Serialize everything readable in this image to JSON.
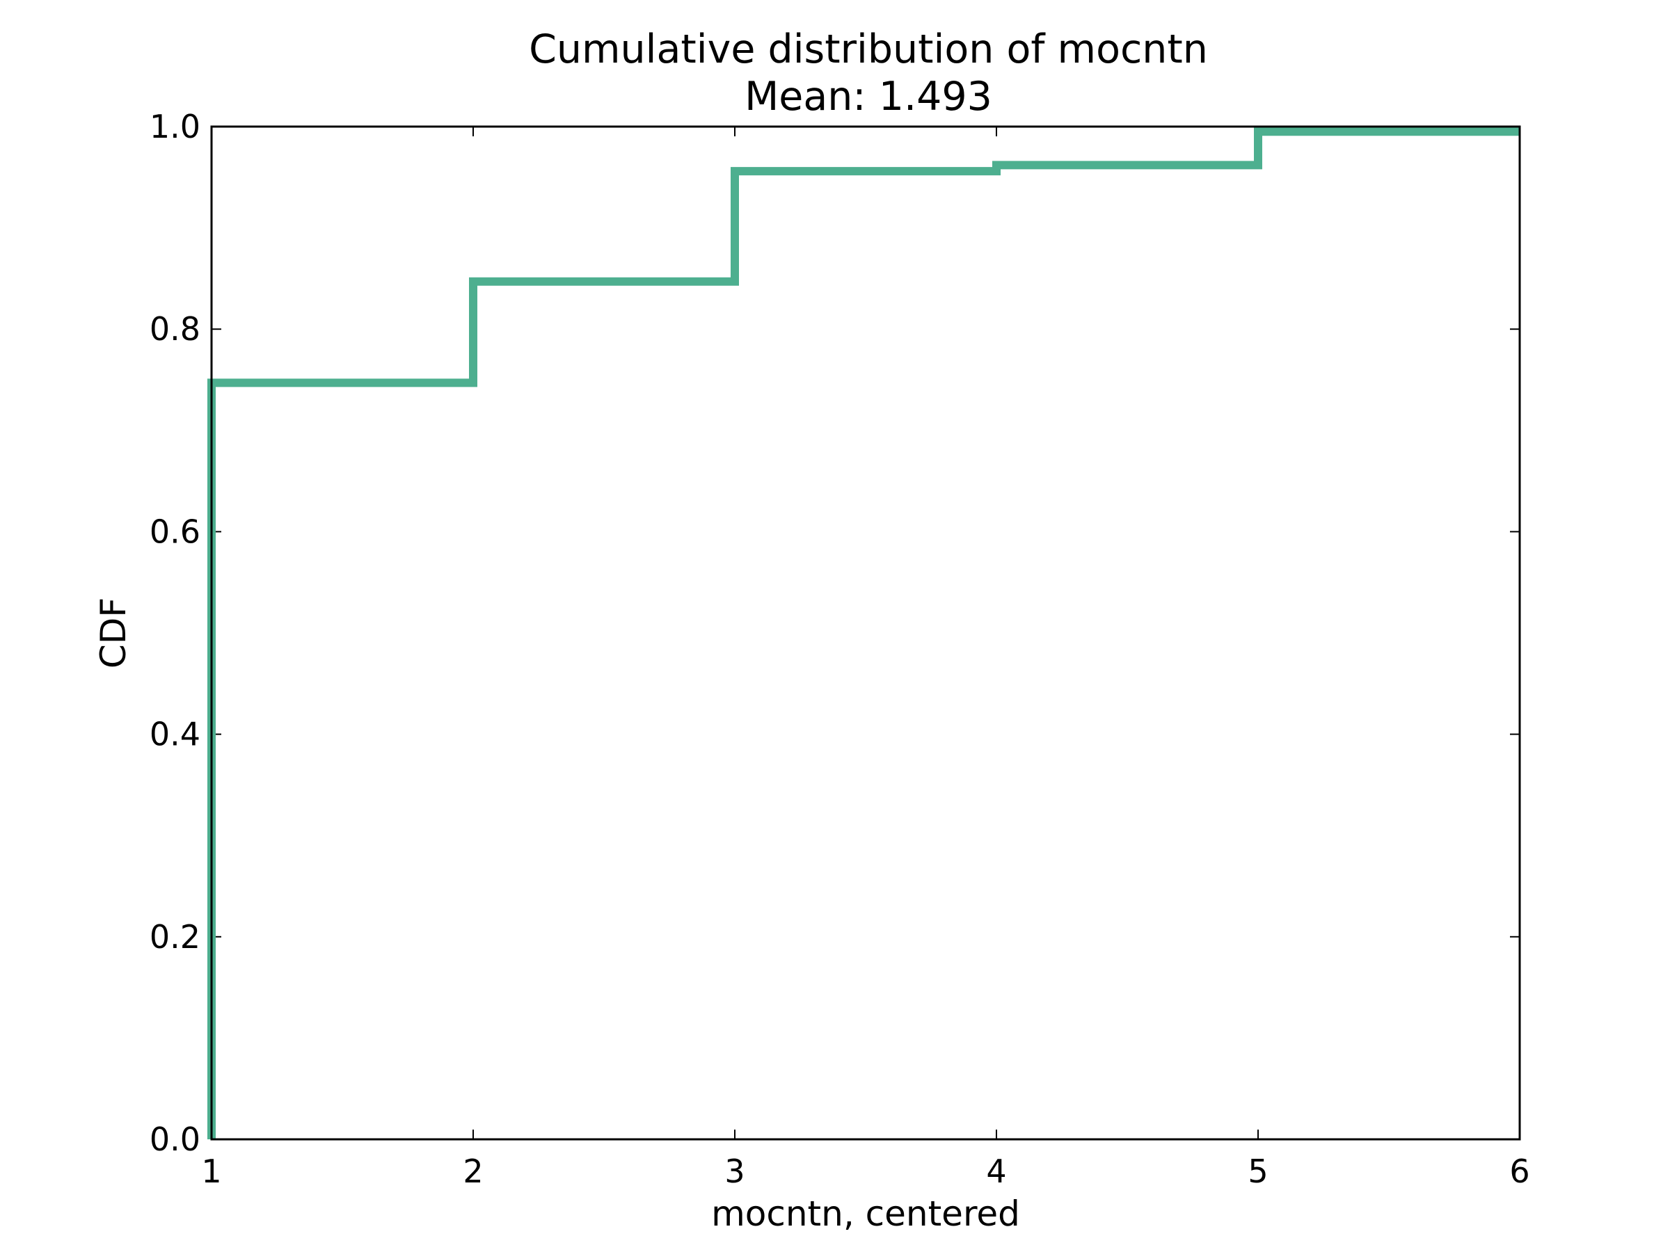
{
  "chart_data": {
    "type": "line",
    "step": true,
    "title": "Cumulative distribution of mocntn",
    "subtitle": "Mean: 1.493",
    "xlabel": "mocntn, centered",
    "ylabel": "CDF",
    "xlim": [
      1,
      6
    ],
    "ylim": [
      0,
      1
    ],
    "xticks": [
      1,
      2,
      3,
      4,
      5,
      6
    ],
    "xtick_labels": [
      "1",
      "2",
      "3",
      "4",
      "5",
      "6"
    ],
    "yticks": [
      0,
      0.2,
      0.4,
      0.6,
      0.8,
      1.0
    ],
    "ytick_labels": [
      "0.0",
      "0.2",
      "0.4",
      "0.6",
      "0.8",
      "1.0"
    ],
    "grid": false,
    "series": [
      {
        "name": "CDF",
        "color": "#4daf8f",
        "x": [
          1,
          1,
          2,
          2,
          3,
          3,
          4,
          4,
          5,
          5,
          6
        ],
        "y": [
          0,
          0.747,
          0.747,
          0.847,
          0.847,
          0.956,
          0.956,
          0.962,
          0.962,
          0.995,
          0.995
        ]
      }
    ]
  }
}
